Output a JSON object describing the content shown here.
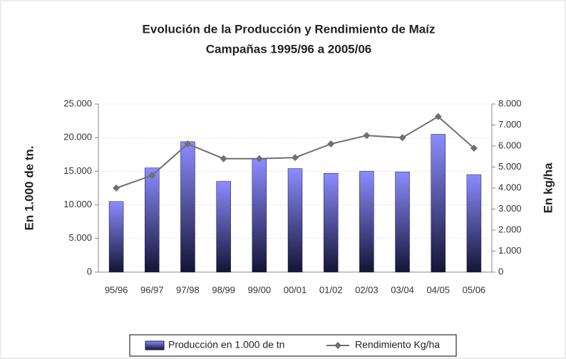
{
  "chart_data": {
    "type": "bar-line",
    "title": "Evolución de la Producción y Rendimiento de Maíz",
    "subtitle": "Campañas 1995/96 a 2005/06",
    "y_label": "En 1.000 de tn.",
    "y2_label": "En kg/ha",
    "categories": [
      "95/96",
      "96/97",
      "97/98",
      "98/99",
      "99/00",
      "00/01",
      "01/02",
      "02/03",
      "03/04",
      "04/05",
      "05/06"
    ],
    "series": [
      {
        "name": "Producción en 1.000 de tn",
        "type": "bar",
        "color": "#8c8cff",
        "values": [
          10500,
          15500,
          19400,
          13500,
          16800,
          15400,
          14700,
          15000,
          14900,
          20500,
          14500
        ]
      },
      {
        "name": "Rendimiento Kg/ha",
        "type": "line",
        "axis": "y2",
        "color": "#707070",
        "values": [
          4000,
          4600,
          6100,
          5400,
          5400,
          5450,
          6100,
          6500,
          6400,
          7400,
          5900
        ]
      }
    ],
    "ylim": [
      0,
      25000
    ],
    "yticks": [
      0,
      {
        "value": 5000,
        "label": "5.000"
      },
      {
        "value": 10000,
        "label": "10.000"
      },
      {
        "value": 15000,
        "label": "15.000"
      },
      {
        "value": 20000,
        "label": "20.000"
      },
      {
        "value": 25000,
        "label": "25.000"
      }
    ],
    "y2lim": [
      0,
      8000
    ],
    "y2ticks": [
      0,
      {
        "value": 1000,
        "label": "1.000"
      },
      {
        "value": 2000,
        "label": "2.000"
      },
      {
        "value": 3000,
        "label": "3.000"
      },
      {
        "value": 4000,
        "label": "4.000"
      },
      {
        "value": 5000,
        "label": "5.000"
      },
      {
        "value": 6000,
        "label": "6.000"
      },
      {
        "value": 7000,
        "label": "7.000"
      },
      {
        "value": 8000,
        "label": "8.000"
      }
    ],
    "grid": true,
    "legend": "bottom"
  }
}
